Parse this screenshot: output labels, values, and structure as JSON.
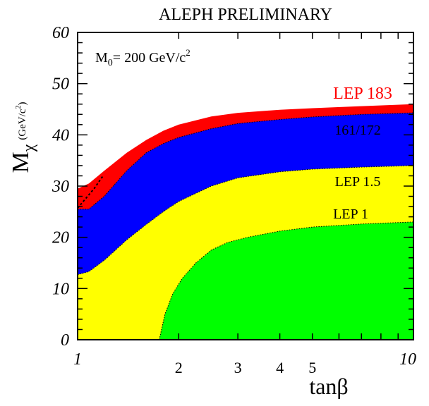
{
  "header": {
    "title": "ALEPH PRELIMINARY"
  },
  "colors": {
    "lep183": "#ff0000",
    "lep161_172": "#0000ff",
    "lep15": "#ffff00",
    "lep1": "#00ff00",
    "frame": "#000000",
    "background": "#ffffff"
  },
  "chart_data": {
    "type": "area",
    "title": "ALEPH PRELIMINARY",
    "xlabel": "tanβ",
    "ylabel": {
      "main": "M",
      "sub": "χ",
      "unit": "(GeV/c",
      "unit_sup": "2",
      "unit_close": ")"
    },
    "annotation": {
      "main": "M",
      "sub": "0",
      "text": "= 200 GeV/c",
      "sup": "2"
    },
    "xscale": "log",
    "xlim": [
      1,
      10
    ],
    "ylim": [
      0,
      60
    ],
    "xticks_labeled": [
      {
        "value": 1,
        "label": "1"
      },
      {
        "value": 2,
        "label": "2"
      },
      {
        "value": 3,
        "label": "3"
      },
      {
        "value": 4,
        "label": "4"
      },
      {
        "value": 5,
        "label": "5"
      },
      {
        "value": 10,
        "label": "10"
      }
    ],
    "yticks": [
      0,
      10,
      20,
      30,
      40,
      50,
      60
    ],
    "ytick_labels": [
      "0",
      "10",
      "20",
      "30",
      "40",
      "50",
      "60"
    ],
    "grid": false,
    "series": [
      {
        "name": "LEP 183",
        "color": "#ff0000",
        "x": [
          1.0,
          1.08,
          1.2,
          1.4,
          1.6,
          1.8,
          2.0,
          2.5,
          3.0,
          4.0,
          5.0,
          7.0,
          10.0
        ],
        "y": [
          29.5,
          30.5,
          33.0,
          36.5,
          39.0,
          40.8,
          42.0,
          43.6,
          44.3,
          44.9,
          45.2,
          45.6,
          46.0
        ]
      },
      {
        "name": "161/172",
        "color": "#0000ff",
        "x": [
          1.0,
          1.08,
          1.2,
          1.4,
          1.6,
          1.8,
          2.0,
          2.5,
          3.0,
          4.0,
          5.0,
          7.0,
          10.0
        ],
        "y": [
          25.5,
          25.5,
          28.0,
          33.0,
          36.5,
          38.3,
          39.5,
          41.2,
          42.2,
          43.0,
          43.5,
          44.0,
          44.3
        ]
      },
      {
        "name": "LEP 1.5",
        "color": "#ffff00",
        "x": [
          1.0,
          1.08,
          1.2,
          1.4,
          1.6,
          1.8,
          2.0,
          2.5,
          3.0,
          4.0,
          5.0,
          7.0,
          10.0
        ],
        "y": [
          12.7,
          13.3,
          15.5,
          19.5,
          22.5,
          25.0,
          27.0,
          30.0,
          31.6,
          32.8,
          33.3,
          33.7,
          34.0
        ]
      },
      {
        "name": "LEP 1",
        "color": "#00ff00",
        "x": [
          1.75,
          1.82,
          1.92,
          2.05,
          2.25,
          2.5,
          2.8,
          3.2,
          4.0,
          5.0,
          7.0,
          10.0
        ],
        "y": [
          0,
          5.0,
          9.0,
          12.0,
          15.0,
          17.5,
          19.0,
          20.0,
          21.2,
          22.0,
          22.6,
          23.0
        ]
      }
    ],
    "dashed_line": {
      "x": [
        1.0,
        1.12,
        1.19
      ],
      "y": [
        25.7,
        29.5,
        32.0
      ]
    },
    "labels": [
      {
        "series": "LEP 183",
        "text": "LEP 183"
      },
      {
        "series": "161/172",
        "text": "161/172"
      },
      {
        "series": "LEP 1.5",
        "text": "LEP 1.5"
      },
      {
        "series": "LEP 1",
        "text": "LEP 1"
      }
    ]
  }
}
